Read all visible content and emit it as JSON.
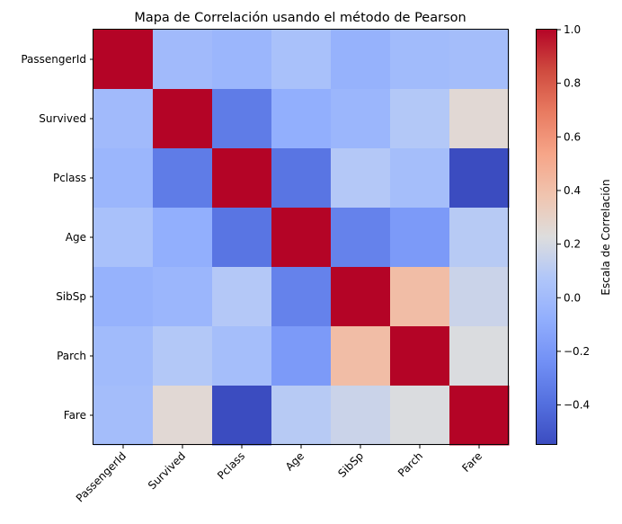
{
  "chart_data": {
    "type": "heatmap",
    "title": "Mapa de Correlación usando el método de Pearson",
    "x_categories": [
      "PassengerId",
      "Survived",
      "Pclass",
      "Age",
      "SibSp",
      "Parch",
      "Fare"
    ],
    "y_categories": [
      "PassengerId",
      "Survived",
      "Pclass",
      "Age",
      "SibSp",
      "Parch",
      "Fare"
    ],
    "values": [
      [
        1.0,
        -0.005,
        -0.035,
        0.037,
        -0.058,
        -0.002,
        0.013
      ],
      [
        -0.005,
        1.0,
        -0.338,
        -0.077,
        -0.035,
        0.082,
        0.257
      ],
      [
        -0.035,
        -0.338,
        1.0,
        -0.369,
        0.083,
        0.018,
        -0.549
      ],
      [
        0.037,
        -0.077,
        -0.369,
        1.0,
        -0.308,
        -0.189,
        0.096
      ],
      [
        -0.058,
        -0.035,
        0.083,
        -0.308,
        1.0,
        0.415,
        0.16
      ],
      [
        -0.002,
        0.082,
        0.018,
        -0.189,
        0.415,
        1.0,
        0.216
      ],
      [
        0.013,
        0.257,
        -0.549,
        0.096,
        0.16,
        0.216,
        1.0
      ]
    ],
    "colormap": "coolwarm",
    "vmin": -0.549,
    "vmax": 1.0,
    "colorbar": {
      "label": "Escala de Correlación",
      "ticks": [
        -0.4,
        -0.2,
        0.0,
        0.2,
        0.4,
        0.6,
        0.8,
        1.0
      ],
      "tick_labels": [
        "−0.4",
        "−0.2",
        "0.0",
        "0.2",
        "0.4",
        "0.6",
        "0.8",
        "1.0"
      ]
    }
  }
}
